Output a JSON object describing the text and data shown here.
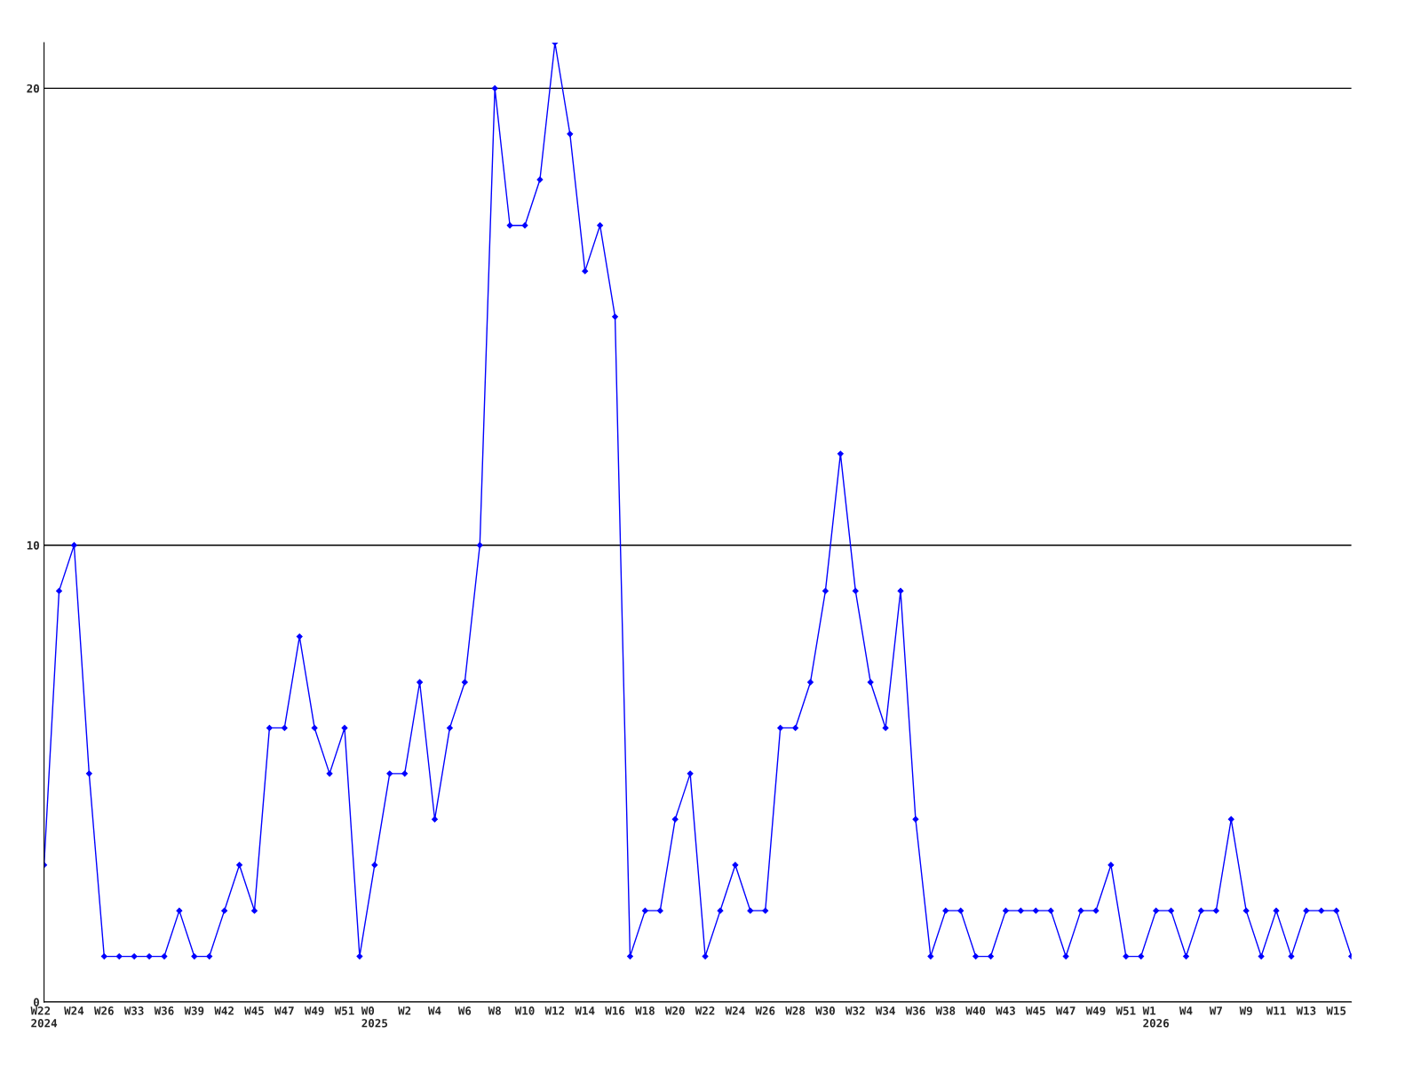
{
  "chart_data": {
    "type": "line",
    "categories": [
      "W22\n2024",
      null,
      "W24",
      null,
      "W26",
      null,
      "W33",
      null,
      "W36",
      null,
      "W39",
      null,
      "W42",
      null,
      "W45",
      null,
      "W47",
      null,
      "W49",
      null,
      "W51",
      null,
      "W0\n2025",
      null,
      "W2",
      null,
      "W4",
      null,
      "W6",
      null,
      "W8",
      null,
      "W10",
      null,
      "W12",
      null,
      "W14",
      null,
      "W16",
      null,
      "W18",
      null,
      "W20",
      null,
      "W22",
      null,
      "W24",
      null,
      "W26",
      null,
      "W28",
      null,
      "W30",
      null,
      "W32",
      null,
      "W34",
      null,
      "W36",
      null,
      "W38",
      null,
      "W40",
      null,
      "W43",
      null,
      "W45",
      null,
      "W47",
      null,
      "W49",
      null,
      "W51",
      null,
      "W1\n2026",
      null,
      "W4",
      null,
      "W7",
      null,
      "W9",
      null,
      "W11",
      null,
      "W13",
      null,
      "W15",
      null
    ],
    "series": [
      {
        "color": "#0000ff",
        "values": [
          3,
          9,
          10,
          5,
          1,
          1,
          1,
          1,
          1,
          2,
          1,
          1,
          2,
          3,
          2,
          6,
          6,
          8,
          6,
          5,
          6,
          1,
          3,
          5,
          5,
          7,
          4,
          6,
          7,
          10,
          20,
          17,
          17,
          18,
          21,
          19,
          16,
          17,
          15,
          1,
          2,
          2,
          4,
          5,
          1,
          2,
          3,
          2,
          2,
          6,
          6,
          7,
          9,
          12,
          9,
          7,
          6,
          9,
          4,
          1,
          2,
          2,
          1,
          1,
          2,
          2,
          2,
          2,
          1,
          2,
          2,
          3,
          1,
          1,
          2,
          2,
          1,
          2,
          2,
          4,
          2,
          1,
          2,
          1,
          2,
          2,
          2,
          1
        ]
      }
    ],
    "ylim": [
      0,
      21
    ],
    "yticks": [
      0,
      10,
      20
    ],
    "grid": "y",
    "marker": "diamond",
    "line_style": "solid"
  }
}
